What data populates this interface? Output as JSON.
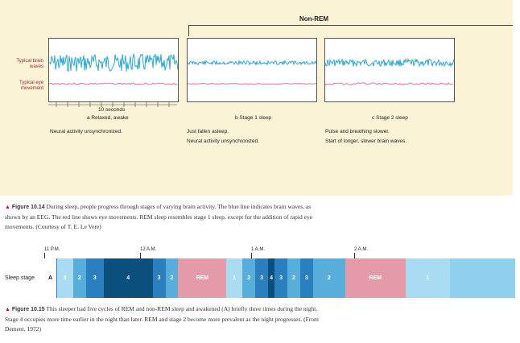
{
  "panel": {
    "nonrem_label": "Non-REM",
    "y_labels": {
      "brain_waves": "Typical brain waves",
      "eye_movement": "Typical eye movement"
    },
    "scale_label": "10 seconds",
    "stages": [
      {
        "caption": "a  Relaxed, awake",
        "lines": [
          "Neural activity unsynchronized."
        ]
      },
      {
        "caption": "b  Stage 1 sleep",
        "lines": [
          "Just fallen asleep.",
          "Neural activity unsynchronized."
        ]
      },
      {
        "caption": "c  Stage 2 sleep",
        "lines": [
          "Pulse and breathing slower.",
          "Start of longer, slower brain waves."
        ]
      }
    ],
    "colors": {
      "panel_bg": "#fbf3d5",
      "brain_wave": "#29a9d8",
      "eye_movement": "#e86fa0"
    }
  },
  "fig1014": {
    "label": "Figure 10.14",
    "text": "During sleep, people progress through stages of varying brain activity. The blue line indicates brain waves, as shown by an EEG. The red line shows eye movements. REM sleep resembles stage 1 sleep, except for the addition of rapid eye movements. (Courtesy of T. E. Le Vere)"
  },
  "fig1015": {
    "label": "Figure 10.15",
    "text": "This sleeper had five cycles of REM and non-REM sleep and awakened (A) briefly three times during the night. Stage 4 occupies more time earlier in the night than later. REM and stage 2 become more prevalent as the night progresses. (From Dement, 1972)"
  },
  "timeline": {
    "row_label": "Sleep stage",
    "times": [
      "11 P.M.",
      "12 A.M.",
      "1 A.M.",
      "2 A.M."
    ],
    "segments": [
      {
        "label": "A",
        "color": "#ffffff",
        "text_color": "#111111"
      },
      {
        "label": "1",
        "color": "#a9dcf2"
      },
      {
        "label": "2",
        "color": "#58aedb"
      },
      {
        "label": "3",
        "color": "#2a7fbf"
      },
      {
        "label": "4",
        "color": "#0b4f7c"
      },
      {
        "label": "3",
        "color": "#2a7fbf"
      },
      {
        "label": "2",
        "color": "#58aedb"
      },
      {
        "label": "REM",
        "color": "#e59aa8"
      },
      {
        "label": "1",
        "color": "#a9dcf2"
      },
      {
        "label": "2",
        "color": "#58aedb"
      },
      {
        "label": "3",
        "color": "#2a7fbf"
      },
      {
        "label": "4",
        "color": "#0b4f7c"
      },
      {
        "label": "3",
        "color": "#2a7fbf"
      },
      {
        "label": "2",
        "color": "#58aedb"
      },
      {
        "label": "3",
        "color": "#2a7fbf"
      },
      {
        "label": "2",
        "color": "#58aedb"
      },
      {
        "label": "REM",
        "color": "#e59aa8"
      },
      {
        "label": "1",
        "color": "#a9dcf2"
      },
      {
        "label": "",
        "color": "#8fd0ee"
      }
    ]
  }
}
